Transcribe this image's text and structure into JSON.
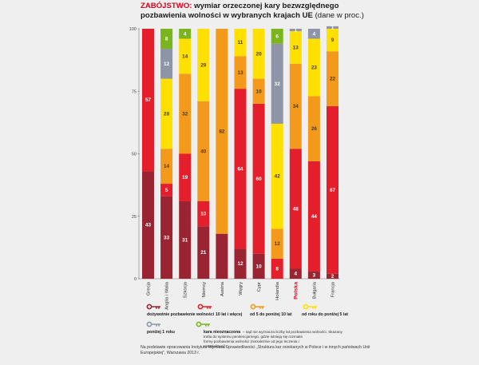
{
  "chart_data": {
    "type": "bar",
    "stacked": true,
    "title_accent": "ZABÓJSTWO:",
    "title_line1": "wymiar orzeczonej kary bezwzględnego",
    "title_line2": "pozbawienia wolności w wybranych krajach UE",
    "title_suffix": "(dane w proc.)",
    "ylim": [
      0,
      100
    ],
    "yticks": [
      "0",
      "25",
      "50",
      "75",
      "100"
    ],
    "highlight_category": "Polska",
    "highlight_color": "#e2001a",
    "categories": [
      "Grecja",
      "Anglia i Walia",
      "Szkocja",
      "Niemcy",
      "Austria",
      "Węgry",
      "Cypr",
      "Holandia",
      "Polska",
      "Bułgaria",
      "Francja"
    ],
    "series": [
      {
        "key": "life",
        "name": "dożywotnie pozbawienie wolności",
        "color": "#9b2433",
        "values": [
          43,
          33,
          31,
          21,
          18,
          12,
          10,
          0,
          4,
          3,
          2
        ],
        "labels": [
          "43",
          "33",
          "31",
          "21",
          "",
          "12",
          "10",
          "",
          "4",
          "3",
          "2"
        ]
      },
      {
        "key": "over10",
        "name": "10 lat i więcej",
        "color": "#e41e2b",
        "values": [
          57,
          5,
          19,
          10,
          0,
          64,
          60,
          8,
          48,
          44,
          67
        ],
        "labels": [
          "57",
          "5",
          "19",
          "10",
          "",
          "64",
          "60",
          "8",
          "48",
          "44",
          "67"
        ]
      },
      {
        "key": "5to10",
        "name": "od 5 do poniżej 10 lat",
        "color": "#f39a1d",
        "values": [
          0,
          14,
          32,
          40,
          82,
          13,
          10,
          12,
          34,
          26,
          22
        ],
        "labels": [
          "",
          "14",
          "32",
          "40",
          "82",
          "13",
          "10",
          "12",
          "34",
          "26",
          "22"
        ]
      },
      {
        "key": "1to5",
        "name": "od roku do poniżej 5 lat",
        "color": "#ffe000",
        "values": [
          0,
          28,
          14,
          29,
          0,
          11,
          20,
          42,
          13,
          23,
          9
        ],
        "labels": [
          "",
          "28",
          "14",
          "29",
          "",
          "11",
          "20",
          "42",
          "13",
          "23",
          "9"
        ]
      },
      {
        "key": "under1",
        "name": "poniżej 1 roku",
        "color": "#8e95a6",
        "values": [
          0,
          12,
          0,
          0,
          0,
          0,
          0,
          32,
          1,
          4,
          1
        ],
        "labels": [
          "",
          "12",
          "",
          "",
          "",
          "",
          "",
          "32",
          "1",
          "4",
          "1"
        ]
      },
      {
        "key": "noncustodial",
        "name": "kara nieoznaczona",
        "color": "#7ab51d",
        "values": [
          0,
          8,
          4,
          0,
          0,
          0,
          0,
          6,
          0,
          0,
          0
        ],
        "labels": [
          "",
          "8",
          "4",
          "",
          "",
          "",
          "",
          "6",
          "",
          "",
          ""
        ]
      }
    ],
    "legend_extra": "– sąd nie wyznacza liczby lat pozbawienia wolności. Skazany trafia do systemu penitencjarnego, gdzie istnieją się rozmaite formy pozbawienia wolności (niezależnie od jego leczenia i resocjalizacji).",
    "source": "Na podstawie opracowania Instytutu Wymiaru Sprawiedliwości „Struktura kar orzekanych w Polsce i w innych państwach Unii Europejskiej”, Warszawa 2013 r."
  }
}
